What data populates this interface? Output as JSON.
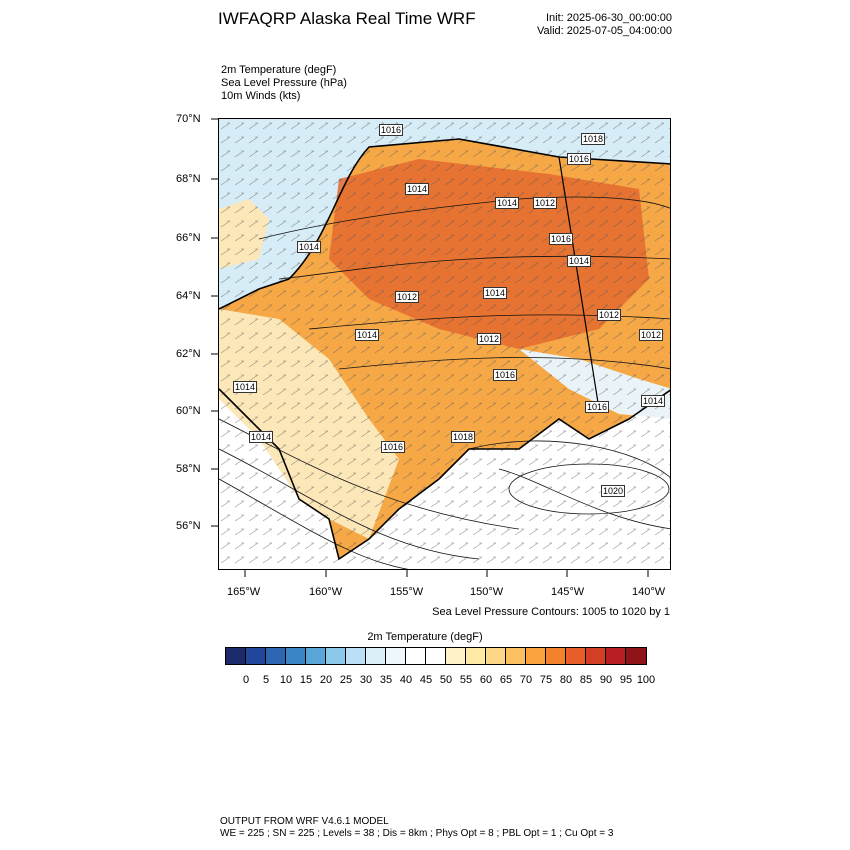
{
  "header": {
    "title": "IWFAQRP Alaska Real Time WRF",
    "init": "Init: 2025-06-30_00:00:00",
    "valid": "Valid: 2025-07-05_04:00:00"
  },
  "fields": [
    "2m Temperature   (degF)",
    "Sea Level Pressure   (hPa)",
    "10m Winds   (kts)"
  ],
  "map": {
    "lat_labels": [
      "70°N",
      "68°N",
      "66°N",
      "64°N",
      "62°N",
      "60°N",
      "58°N",
      "56°N"
    ],
    "lon_labels": [
      "165°W",
      "160°W",
      "155°W",
      "150°W",
      "145°W",
      "140°W"
    ],
    "isobar_labels": [
      "1016",
      "1018",
      "1016",
      "1014",
      "1014",
      "1012",
      "1014",
      "1016",
      "1014",
      "1012",
      "1014",
      "1012",
      "1012",
      "1014",
      "1016",
      "1014",
      "1012",
      "1016",
      "1014",
      "1016",
      "1018",
      "1020",
      "1014"
    ],
    "colors": {
      "ocean": "#d6ecf6",
      "land_cool": "#fbe7b8",
      "land_warm": "#f6a846",
      "land_hot": "#e36a2e"
    }
  },
  "contour_note": "Sea Level Pressure Contours: 1005 to 1020 by 1",
  "colorbar": {
    "title": "2m Temperature  (degF)",
    "colors": [
      "#1b2a6b",
      "#22479a",
      "#2f66b3",
      "#3c85c6",
      "#5aa5d8",
      "#8cc8ea",
      "#b9e0f4",
      "#dbeff8",
      "#eef7fb",
      "#ffffff",
      "#ffffff",
      "#fff1c8",
      "#feeaa5",
      "#fdd888",
      "#fcc061",
      "#f9a23e",
      "#f3822b",
      "#e85f2a",
      "#d43e24",
      "#b81e22",
      "#8f1419"
    ],
    "labels": [
      "0",
      "5",
      "10",
      "15",
      "20",
      "25",
      "30",
      "35",
      "40",
      "45",
      "50",
      "55",
      "60",
      "65",
      "70",
      "75",
      "80",
      "85",
      "90",
      "95",
      "100"
    ]
  },
  "footer": {
    "line1": "OUTPUT FROM WRF V4.6.1 MODEL",
    "line2": "WE = 225 ; SN = 225 ; Levels = 38 ; Dis = 8km ; Phys Opt = 8 ; PBL Opt = 1 ; Cu Opt = 3"
  }
}
